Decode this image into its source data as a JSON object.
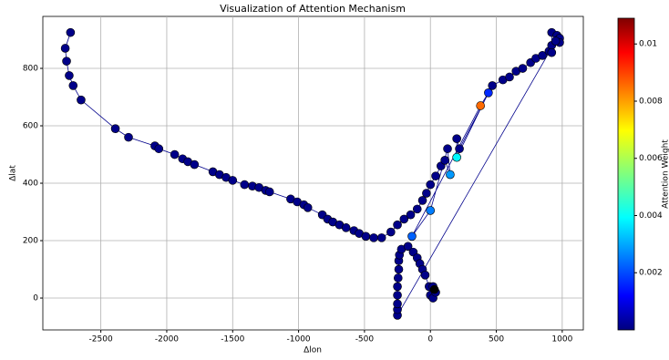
{
  "chart_data": {
    "type": "scatter",
    "title": "Visualization of Attention Mechanism",
    "x_label": "Δlon",
    "y_label": "Δlat",
    "colorbar_label": "Attention Weight",
    "colormap": "jet",
    "line_color": "#00008b",
    "grid": true,
    "xlim": [
      -2940,
      1160
    ],
    "ylim": [
      -111,
      981
    ],
    "xticks": [
      -2500,
      -2000,
      -1500,
      -1000,
      -500,
      0,
      500,
      1000
    ],
    "yticks": [
      0,
      200,
      400,
      600,
      800
    ],
    "clim": [
      0,
      0.0109
    ],
    "cticks": [
      0.002,
      0.004,
      0.006,
      0.008,
      0.01
    ],
    "x": [
      -2730,
      -2770,
      -2760,
      -2740,
      -2710,
      -2650,
      -2390,
      -2290,
      -2090,
      -2060,
      -1940,
      -1880,
      -1840,
      -1790,
      -1650,
      -1600,
      -1550,
      -1500,
      -1410,
      -1350,
      -1300,
      -1250,
      -1220,
      -1060,
      -1010,
      -960,
      -930,
      -820,
      -780,
      -740,
      -690,
      -640,
      -580,
      -540,
      -490,
      -430,
      -370,
      -300,
      -250,
      -200,
      -150,
      -100,
      -60,
      -30,
      0,
      40,
      80,
      110,
      150,
      130,
      0,
      -140,
      380,
      440,
      200,
      200,
      220,
      470,
      550,
      600,
      650,
      700,
      760,
      800,
      850,
      900,
      920,
      920,
      920,
      960,
      980,
      980,
      950,
      -250,
      -250,
      -250,
      -250,
      -250,
      -245,
      -240,
      -240,
      -235,
      -220,
      -170,
      -130,
      -100,
      -80,
      -60,
      -40,
      -10,
      0,
      20,
      40,
      20,
      30
    ],
    "y": [
      925,
      870,
      825,
      775,
      740,
      690,
      590,
      560,
      530,
      520,
      500,
      485,
      475,
      465,
      440,
      430,
      420,
      410,
      395,
      390,
      385,
      375,
      370,
      345,
      335,
      325,
      315,
      290,
      275,
      265,
      255,
      245,
      235,
      225,
      215,
      210,
      210,
      230,
      255,
      275,
      290,
      310,
      340,
      365,
      395,
      425,
      460,
      480,
      430,
      520,
      305,
      215,
      670,
      715,
      490,
      555,
      520,
      740,
      760,
      770,
      790,
      800,
      820,
      835,
      845,
      860,
      880,
      855,
      925,
      915,
      905,
      890,
      895,
      -60,
      -40,
      -20,
      10,
      40,
      70,
      100,
      130,
      150,
      170,
      180,
      160,
      140,
      120,
      100,
      80,
      40,
      10,
      0,
      20,
      40,
      30
    ],
    "weights": [
      0.0001,
      0.0001,
      0.0001,
      0.0001,
      0.0001,
      0.0001,
      0.0001,
      0.0001,
      0.0001,
      0.0001,
      0.0001,
      0.0001,
      0.0001,
      0.0001,
      0.0001,
      0.0001,
      0.0001,
      0.0001,
      0.0001,
      0.0001,
      0.0001,
      0.0001,
      0.0001,
      0.0001,
      0.0001,
      0.0001,
      0.0001,
      0.0001,
      0.0001,
      0.0001,
      0.0001,
      0.0001,
      0.0001,
      0.0001,
      0.0001,
      0.0001,
      0.0001,
      0.0001,
      0.0001,
      0.0001,
      0.0001,
      0.0001,
      0.0001,
      0.0001,
      0.0001,
      0.0001,
      0.0001,
      0.0001,
      0.003,
      0.0001,
      0.0027,
      0.0024,
      0.0084,
      0.0018,
      0.004,
      0.0001,
      0.0001,
      0.0001,
      0.0001,
      0.0001,
      0.0001,
      0.0001,
      0.0001,
      0.0001,
      0.0001,
      0.0001,
      0.0001,
      0.0001,
      0.0001,
      0.0001,
      0.0001,
      0.0001,
      0.0001,
      0.0001,
      0.0001,
      0.0001,
      0.0001,
      0.0001,
      0.0001,
      0.0001,
      0.0001,
      0.0001,
      0.0001,
      0.0001,
      0.0001,
      0.0001,
      0.0001,
      0.0001,
      0.0001,
      0.0001,
      0.0001,
      0.0001,
      0.0001,
      0.0001
    ]
  }
}
